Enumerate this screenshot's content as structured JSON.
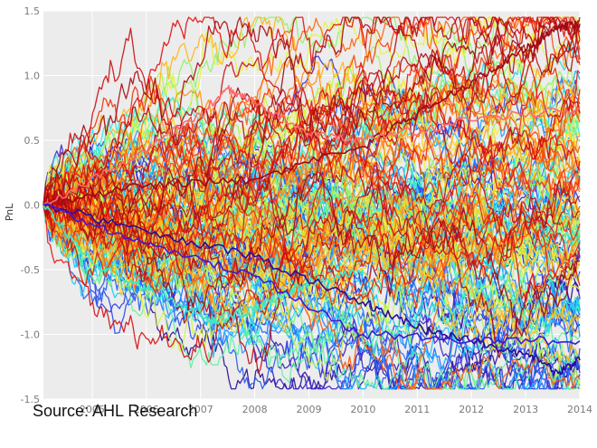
{
  "source_text": "Source: AHL Research",
  "chart_data": {
    "type": "line",
    "title": "",
    "xlabel": "",
    "ylabel": "PnL",
    "xlim": [
      2004.1,
      2014.0
    ],
    "ylim": [
      -1.5,
      1.5
    ],
    "grid": true,
    "legend": "none",
    "x_ticks": [
      "2005",
      "2006",
      "2007",
      "2008",
      "2009",
      "2010",
      "2011",
      "2012",
      "2013",
      "2014"
    ],
    "y_ticks": [
      "1.5",
      "1.0",
      "0.5",
      "0.0",
      "-0.5",
      "-1.0",
      "-1.5"
    ],
    "background_color": "#ececec",
    "gridline_color": "#ffffff",
    "colormap": "jet",
    "colormap_stops": [
      "#2a0a8f",
      "#3b2bd6",
      "#1d6bff",
      "#17c4ff",
      "#33f0d2",
      "#9af55a",
      "#f4f23a",
      "#ffb319",
      "#ff5a0c",
      "#e01010",
      "#9c0a14"
    ],
    "series_count": 140,
    "start_value": 0.0,
    "highlighted_paths": [
      {
        "color": "#9c0a14",
        "x": [
          2004.1,
          2006.0,
          2008.0,
          2010.0,
          2011.0,
          2012.0,
          2013.0,
          2013.5,
          2014.0
        ],
        "y": [
          0.0,
          0.15,
          0.2,
          0.45,
          0.7,
          0.95,
          1.2,
          1.35,
          1.4
        ]
      },
      {
        "color": "#ff6a6a",
        "x": [
          2004.1,
          2005.5,
          2007.0,
          2007.5,
          2008.0,
          2009.0,
          2010.0,
          2012.0,
          2014.0
        ],
        "y": [
          0.0,
          0.3,
          0.7,
          0.9,
          0.8,
          0.55,
          0.5,
          0.65,
          0.75
        ]
      },
      {
        "color": "#3ee6c8",
        "x": [
          2004.1,
          2005.0,
          2006.0,
          2007.0,
          2007.3,
          2008.0,
          2008.5,
          2009.0,
          2010.0
        ],
        "y": [
          0.0,
          -0.45,
          -0.65,
          -0.85,
          -0.9,
          -0.8,
          -0.7,
          -0.6,
          -0.5
        ]
      },
      {
        "color": "#2b0c9a",
        "x": [
          2004.1,
          2006.0,
          2008.0,
          2010.0,
          2011.0,
          2012.0,
          2013.0,
          2013.6,
          2014.0
        ],
        "y": [
          0.0,
          -0.2,
          -0.4,
          -0.75,
          -0.95,
          -1.05,
          -1.15,
          -1.3,
          -1.2
        ]
      },
      {
        "color": "#3d1bd0",
        "x": [
          2004.1,
          2006.0,
          2008.0,
          2010.0,
          2012.0,
          2014.0
        ],
        "y": [
          0.0,
          -0.3,
          -0.55,
          -1.0,
          -1.05,
          -1.05
        ]
      }
    ]
  }
}
